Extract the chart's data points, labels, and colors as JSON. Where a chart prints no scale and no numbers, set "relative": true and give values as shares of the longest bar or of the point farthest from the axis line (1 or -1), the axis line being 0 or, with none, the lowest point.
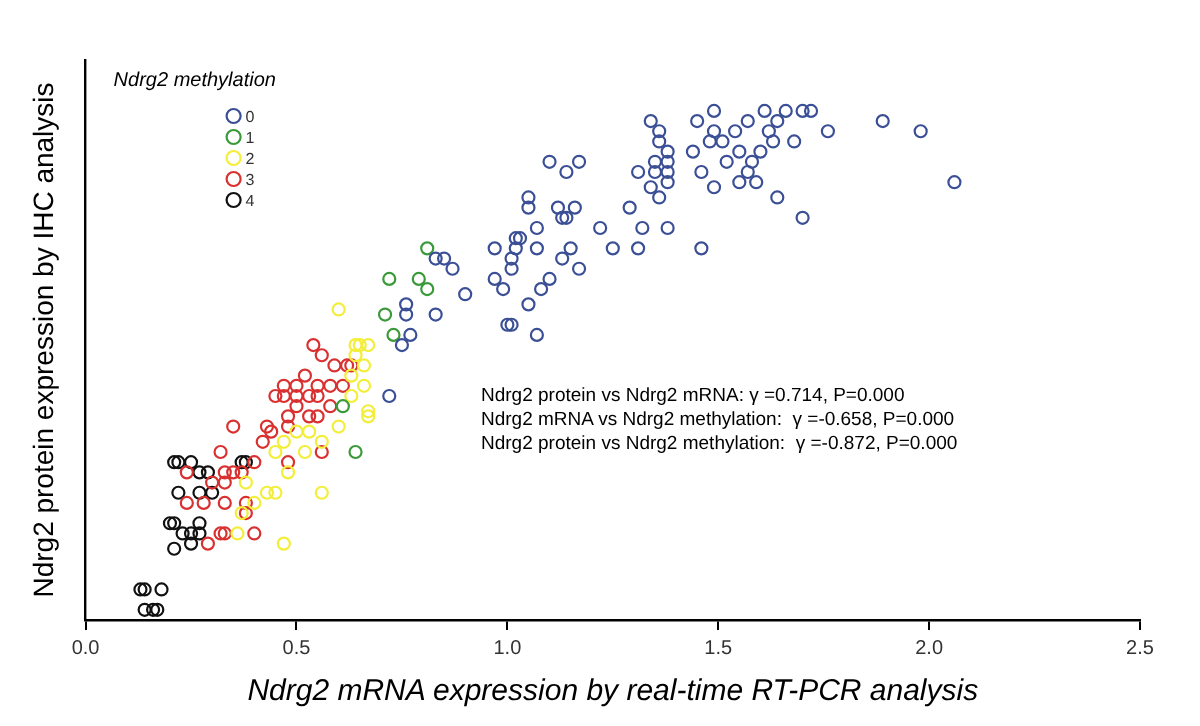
{
  "chart_data": {
    "type": "scatter",
    "xlabel": "Ndrg2 mRNA expression by real-time RT-PCR analysis",
    "ylabel": "Ndrg2 protein expression by IHC analysis",
    "legend_title": "Ndrg2 methylation",
    "legend": "top left",
    "marker": "circle",
    "grid": false,
    "relative": true,
    "xlim": [
      0,
      2.5
    ],
    "xticks": [
      {
        "value": 0,
        "label": "0.0"
      },
      {
        "value": 0.5,
        "label": "0.5"
      },
      {
        "value": 1,
        "label": "1.0"
      },
      {
        "value": 1.5,
        "label": "1.5"
      },
      {
        "value": 2,
        "label": "2.0"
      },
      {
        "value": 2.5,
        "label": "2.5"
      }
    ],
    "annotations": [
      "Ndrg2 protein vs Ndrg2 mRNA: γ =0.714, P=0.000",
      "Ndrg2 mRNA vs Ndrg2 methylation:  γ =-0.658, P=0.000",
      "Ndrg2 protein vs Ndrg2 methylation:  γ =-0.872, P=0.000"
    ],
    "series": [
      {
        "name": "0",
        "color": "#3b4f96",
        "x": [
          1.34,
          1.36,
          1.36,
          1.38,
          1.35,
          1.38,
          1.31,
          1.35,
          1.38,
          1.38,
          1.34,
          1.36,
          1.1,
          1.14,
          1.17,
          1.05,
          1.05,
          1.12,
          1.13,
          1.14,
          1.16,
          1.07,
          1.02,
          1.03,
          1.02,
          1.07,
          1.01,
          1.01,
          0.99,
          1.0,
          1.01,
          1.05,
          1.07,
          1.08,
          1.1,
          1.13,
          1.15,
          1.17,
          1.22,
          1.25,
          1.29,
          1.31,
          1.32,
          1.38,
          1.45,
          1.44,
          1.46,
          1.46,
          1.49,
          1.49,
          1.48,
          1.51,
          1.54,
          1.57,
          1.55,
          1.52,
          1.49,
          1.57,
          1.58,
          1.6,
          1.55,
          1.59,
          1.61,
          1.62,
          1.64,
          1.63,
          1.66,
          1.68,
          1.7,
          1.72,
          1.76,
          1.64,
          1.7,
          1.89,
          1.98,
          2.06,
          0.72,
          0.75,
          0.77,
          0.76,
          0.76,
          0.83,
          0.9,
          0.83,
          0.85,
          0.87,
          0.97,
          0.97
        ],
        "values": [
          0.98,
          0.96,
          0.94,
          0.92,
          0.9,
          0.9,
          0.88,
          0.88,
          0.88,
          0.86,
          0.85,
          0.83,
          0.9,
          0.88,
          0.9,
          0.83,
          0.81,
          0.81,
          0.79,
          0.79,
          0.81,
          0.77,
          0.75,
          0.75,
          0.73,
          0.73,
          0.71,
          0.69,
          0.65,
          0.58,
          0.58,
          0.62,
          0.56,
          0.65,
          0.67,
          0.71,
          0.73,
          0.69,
          0.77,
          0.73,
          0.81,
          0.73,
          0.77,
          0.77,
          0.98,
          0.92,
          0.88,
          0.73,
          1.0,
          0.96,
          0.94,
          0.94,
          0.96,
          0.98,
          0.92,
          0.9,
          0.85,
          0.88,
          0.9,
          0.92,
          0.86,
          0.86,
          1.0,
          0.96,
          0.98,
          0.94,
          1.0,
          0.94,
          1.0,
          1.0,
          0.96,
          0.83,
          0.79,
          0.98,
          0.96,
          0.86,
          0.44,
          0.54,
          0.56,
          0.6,
          0.62,
          0.6,
          0.64,
          0.71,
          0.71,
          0.69,
          0.73,
          0.67
        ]
      },
      {
        "name": "1",
        "color": "#3a9a3a",
        "x": [
          0.81,
          0.72,
          0.79,
          0.81,
          0.71,
          0.73,
          0.64,
          0.61
        ],
        "values": [
          0.73,
          0.67,
          0.67,
          0.65,
          0.6,
          0.56,
          0.33,
          0.42
        ]
      },
      {
        "name": "2",
        "color": "#f2ee3a",
        "x": [
          0.6,
          0.64,
          0.65,
          0.67,
          0.64,
          0.66,
          0.63,
          0.66,
          0.63,
          0.67,
          0.6,
          0.56,
          0.53,
          0.5,
          0.47,
          0.45,
          0.48,
          0.43,
          0.45,
          0.4,
          0.37,
          0.36,
          0.47,
          0.56,
          0.52,
          0.38,
          0.67
        ],
        "values": [
          0.61,
          0.54,
          0.54,
          0.54,
          0.52,
          0.5,
          0.48,
          0.46,
          0.44,
          0.4,
          0.38,
          0.35,
          0.37,
          0.37,
          0.35,
          0.33,
          0.29,
          0.25,
          0.25,
          0.23,
          0.21,
          0.17,
          0.15,
          0.25,
          0.33,
          0.27,
          0.41
        ]
      },
      {
        "name": "3",
        "color": "#d93030",
        "x": [
          0.54,
          0.56,
          0.59,
          0.62,
          0.63,
          0.52,
          0.5,
          0.47,
          0.45,
          0.47,
          0.5,
          0.53,
          0.55,
          0.58,
          0.61,
          0.55,
          0.58,
          0.55,
          0.53,
          0.5,
          0.48,
          0.48,
          0.43,
          0.44,
          0.42,
          0.35,
          0.48,
          0.4,
          0.37,
          0.35,
          0.33,
          0.33,
          0.32,
          0.3,
          0.24,
          0.28,
          0.33,
          0.38,
          0.38,
          0.33,
          0.32,
          0.29,
          0.4,
          0.56,
          0.24
        ],
        "values": [
          0.54,
          0.52,
          0.5,
          0.5,
          0.5,
          0.48,
          0.46,
          0.46,
          0.44,
          0.44,
          0.44,
          0.44,
          0.46,
          0.46,
          0.46,
          0.44,
          0.42,
          0.4,
          0.4,
          0.42,
          0.4,
          0.38,
          0.38,
          0.37,
          0.35,
          0.38,
          0.31,
          0.31,
          0.29,
          0.29,
          0.29,
          0.27,
          0.33,
          0.27,
          0.23,
          0.23,
          0.23,
          0.23,
          0.21,
          0.17,
          0.17,
          0.15,
          0.17,
          0.33,
          0.29
        ]
      },
      {
        "name": "4",
        "color": "#111111",
        "x": [
          0.13,
          0.14,
          0.18,
          0.14,
          0.16,
          0.17,
          0.21,
          0.22,
          0.25,
          0.27,
          0.29,
          0.37,
          0.38,
          0.22,
          0.27,
          0.3,
          0.2,
          0.21,
          0.23,
          0.25,
          0.27,
          0.27,
          0.25,
          0.21
        ],
        "values": [
          0.06,
          0.06,
          0.06,
          0.02,
          0.02,
          0.02,
          0.31,
          0.31,
          0.31,
          0.29,
          0.29,
          0.31,
          0.31,
          0.25,
          0.25,
          0.25,
          0.19,
          0.19,
          0.17,
          0.17,
          0.19,
          0.17,
          0.15,
          0.14
        ]
      }
    ]
  }
}
